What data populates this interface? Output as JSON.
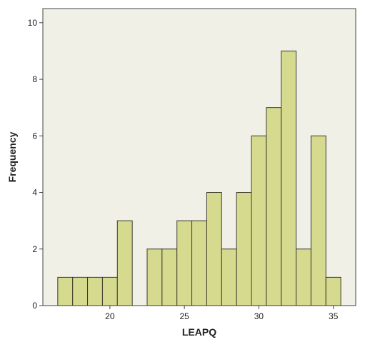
{
  "chart_data": {
    "type": "bar",
    "xlabel": "LEAPQ",
    "ylabel": "Frequency",
    "x_ticks": [
      20,
      25,
      30,
      35
    ],
    "y_ticks": [
      0,
      2,
      4,
      6,
      8,
      10
    ],
    "x_tick_labels": [
      "20",
      "25",
      "30",
      "35"
    ],
    "y_tick_labels": [
      "0",
      "2",
      "4",
      "6",
      "8",
      "10"
    ],
    "xlim": [
      15.5,
      36.5
    ],
    "ylim": [
      0,
      10.5
    ],
    "bin_width": 1,
    "bins": [
      {
        "x": 17,
        "value": 1
      },
      {
        "x": 18,
        "value": 1
      },
      {
        "x": 19,
        "value": 1
      },
      {
        "x": 20,
        "value": 1
      },
      {
        "x": 21,
        "value": 3
      },
      {
        "x": 22,
        "value": 0
      },
      {
        "x": 23,
        "value": 2
      },
      {
        "x": 24,
        "value": 2
      },
      {
        "x": 25,
        "value": 3
      },
      {
        "x": 26,
        "value": 3
      },
      {
        "x": 27,
        "value": 4
      },
      {
        "x": 28,
        "value": 2
      },
      {
        "x": 29,
        "value": 4
      },
      {
        "x": 30,
        "value": 6
      },
      {
        "x": 31,
        "value": 7
      },
      {
        "x": 32,
        "value": 9
      },
      {
        "x": 33,
        "value": 2
      },
      {
        "x": 34,
        "value": 6
      },
      {
        "x": 35,
        "value": 1
      }
    ],
    "grid": false,
    "colors": {
      "bar_fill": "#d6da8e",
      "bar_stroke": "#3a3a2a",
      "plot_background": "#f0f0e6",
      "axis": "#444444"
    }
  }
}
